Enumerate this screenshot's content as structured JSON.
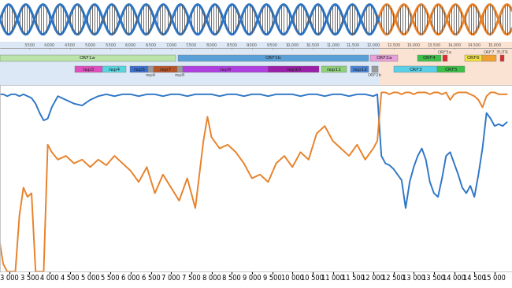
{
  "chart_data": {
    "type": "line",
    "x": [
      2770,
      2850,
      2950,
      3050,
      3150,
      3250,
      3350,
      3450,
      3550,
      3650,
      3750,
      3850,
      3950,
      4050,
      4200,
      4400,
      4600,
      4800,
      5000,
      5200,
      5400,
      5600,
      5800,
      6000,
      6200,
      6400,
      6600,
      6800,
      7000,
      7200,
      7400,
      7600,
      7800,
      7900,
      8000,
      8200,
      8400,
      8600,
      8800,
      9000,
      9200,
      9400,
      9600,
      9800,
      10000,
      10200,
      10400,
      10600,
      10800,
      11000,
      11200,
      11400,
      11600,
      11800,
      12000,
      12100,
      12200,
      12300,
      12400,
      12500,
      12600,
      12700,
      12800,
      12900,
      13000,
      13100,
      13200,
      13300,
      13400,
      13500,
      13600,
      13700,
      13800,
      13900,
      14000,
      14100,
      14200,
      14300,
      14400,
      14500,
      14600,
      14700,
      14800,
      14900,
      15000,
      15100,
      15200,
      15300
    ],
    "series": [
      {
        "color": "#2f77c6",
        "values": [
          95,
          95,
          94,
          95,
          95,
          94,
          95,
          94,
          93,
          90,
          85,
          81,
          82,
          88,
          94,
          92,
          90,
          89,
          92,
          94,
          95,
          94,
          95,
          95,
          94,
          95,
          95,
          94,
          95,
          95,
          94,
          95,
          95,
          95,
          95,
          94,
          95,
          95,
          94,
          95,
          95,
          94,
          95,
          95,
          95,
          94,
          95,
          95,
          94,
          95,
          95,
          94,
          95,
          95,
          94,
          95,
          62,
          58,
          57,
          55,
          52,
          49,
          34,
          48,
          56,
          62,
          66,
          60,
          48,
          42,
          40,
          50,
          62,
          64,
          58,
          52,
          45,
          42,
          46,
          40,
          52,
          66,
          85,
          82,
          78,
          79,
          78,
          80
        ]
      },
      {
        "color": "#e8822a",
        "values": [
          15,
          4,
          0,
          0,
          0,
          30,
          45,
          40,
          42,
          0,
          0,
          0,
          68,
          64,
          60,
          62,
          58,
          60,
          56,
          60,
          57,
          62,
          58,
          54,
          48,
          56,
          42,
          52,
          45,
          38,
          50,
          34,
          70,
          83,
          72,
          66,
          68,
          64,
          58,
          50,
          52,
          48,
          58,
          62,
          56,
          64,
          60,
          74,
          78,
          70,
          66,
          62,
          68,
          60,
          66,
          70,
          96,
          96,
          95,
          96,
          96,
          95,
          96,
          96,
          95,
          96,
          96,
          96,
          95,
          96,
          96,
          95,
          96,
          92,
          95,
          96,
          96,
          96,
          95,
          94,
          92,
          88,
          94,
          96,
          96,
          95,
          95,
          95
        ]
      }
    ],
    "xlim": [
      2770,
      15430
    ],
    "ylim": [
      0,
      100
    ],
    "xticks": [
      {
        "value": 3000,
        "label": "3 000"
      },
      {
        "value": 3500,
        "label": "3 500"
      },
      {
        "value": 4000,
        "label": "4 000"
      },
      {
        "value": 4500,
        "label": "4 500"
      },
      {
        "value": 5000,
        "label": "5 000"
      },
      {
        "value": 5500,
        "label": "5 500"
      },
      {
        "value": 6000,
        "label": "6 000"
      },
      {
        "value": 6500,
        "label": "6 500"
      },
      {
        "value": 7000,
        "label": "7 000"
      },
      {
        "value": 7500,
        "label": "7 500"
      },
      {
        "value": 8000,
        "label": "8 000"
      },
      {
        "value": 8500,
        "label": "8 500"
      },
      {
        "value": 9000,
        "label": "9 000"
      },
      {
        "value": 9500,
        "label": "9 500"
      },
      {
        "value": 10000,
        "label": "10 000"
      },
      {
        "value": 10500,
        "label": "10 500"
      },
      {
        "value": 11000,
        "label": "11 000"
      },
      {
        "value": 11500,
        "label": "11 500"
      },
      {
        "value": 12000,
        "label": "12 000"
      },
      {
        "value": 12500,
        "label": "12 500"
      },
      {
        "value": 13000,
        "label": "13 000"
      },
      {
        "value": 13500,
        "label": "13 500"
      },
      {
        "value": 14000,
        "label": "14 000"
      },
      {
        "value": 14500,
        "label": "14 500"
      },
      {
        "value": 15000,
        "label": "15 000"
      }
    ],
    "tick_labels": "x"
  },
  "genome_map": {
    "breakpoint": 12150,
    "ticks": [
      {
        "value": 3500,
        "label": "3,500"
      },
      {
        "value": 4000,
        "label": "4,000"
      },
      {
        "value": 4500,
        "label": "4,500"
      },
      {
        "value": 5000,
        "label": "5,000"
      },
      {
        "value": 5500,
        "label": "5,500"
      },
      {
        "value": 6000,
        "label": "6,000"
      },
      {
        "value": 6500,
        "label": "6,500"
      },
      {
        "value": 7000,
        "label": "7,000"
      },
      {
        "value": 7500,
        "label": "7,500"
      },
      {
        "value": 8000,
        "label": "8,000"
      },
      {
        "value": 8500,
        "label": "8,500"
      },
      {
        "value": 9000,
        "label": "9,000"
      },
      {
        "value": 9500,
        "label": "9,500"
      },
      {
        "value": 10000,
        "label": "10,000"
      },
      {
        "value": 10500,
        "label": "10,500"
      },
      {
        "value": 11000,
        "label": "11,000"
      },
      {
        "value": 11500,
        "label": "11,500"
      },
      {
        "value": 12000,
        "label": "12,000"
      },
      {
        "value": 12500,
        "label": "12,500"
      },
      {
        "value": 13000,
        "label": "13,000"
      },
      {
        "value": 13500,
        "label": "13,500"
      },
      {
        "value": 14000,
        "label": "14,000"
      },
      {
        "value": 14500,
        "label": "14,500"
      },
      {
        "value": 15000,
        "label": "15,000"
      }
    ],
    "genes": [
      {
        "label": "ORF1a",
        "start": 2766,
        "end": 7114,
        "color": "#b9e3a8"
      },
      {
        "label": "ORF1b",
        "start": 7172,
        "end": 11894,
        "color": "#5aa0d8"
      },
      {
        "label": "ORF2a",
        "start": 11928,
        "end": 12610,
        "color": "#e8a0d8"
      },
      {
        "label": "ORF4",
        "start": 13098,
        "end": 13682,
        "color": "#3cc048"
      },
      {
        "label": "ORF5a",
        "start": 13721,
        "end": 13838,
        "color": "#d83030"
      },
      {
        "label": "ORF6",
        "start": 14267,
        "end": 14696,
        "color": "#f0e040"
      },
      {
        "label": "ORF7",
        "start": 14696,
        "end": 15047,
        "color": "#f0a030"
      },
      {
        "label": "3'UTR",
        "start": 15144,
        "end": 15242,
        "color": "#d83030"
      },
      {
        "label": "nsp3",
        "start": 4617,
        "end": 5300,
        "color": "#e04fc0"
      },
      {
        "label": "nsp4",
        "start": 5300,
        "end": 5885,
        "color": "#57d6e0"
      },
      {
        "label": "nsp5",
        "start": 5982,
        "end": 6431,
        "color": "#3b6fd0"
      },
      {
        "label": "nsp6",
        "start": 6431,
        "end": 6567,
        "color": "#9a9a9a"
      },
      {
        "label": "nsp7",
        "start": 6567,
        "end": 7152,
        "color": "#b8542a"
      },
      {
        "label": "nsp8",
        "start": 7152,
        "end": 7289,
        "color": "#9a9a9a"
      },
      {
        "label": "nsp9",
        "start": 7289,
        "end": 9394,
        "color": "#b03fe0"
      },
      {
        "label": "nsp10",
        "start": 9394,
        "end": 10661,
        "color": "#9b1fa8"
      },
      {
        "label": "nsp11",
        "start": 10719,
        "end": 11343,
        "color": "#8fd07a"
      },
      {
        "label": "nsp12",
        "start": 11440,
        "end": 11889,
        "color": "#4a86d8"
      },
      {
        "label": "ORF2b",
        "start": 11967,
        "end": 12123,
        "color": "#9a9a9a"
      },
      {
        "label": "ORF3",
        "start": 12513,
        "end": 13585,
        "color": "#5ad0e8"
      },
      {
        "label": "ORF5",
        "start": 13585,
        "end": 14267,
        "color": "#3cc048"
      }
    ]
  }
}
